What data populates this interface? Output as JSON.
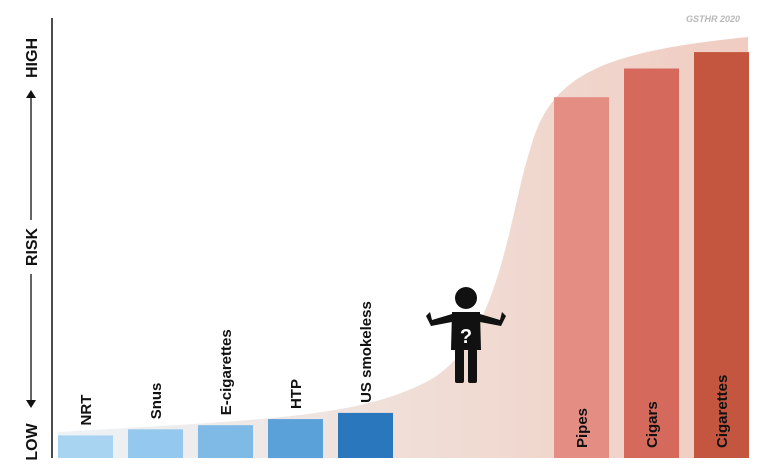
{
  "chart_data": {
    "type": "bar",
    "title": "",
    "xlabel": "",
    "ylabel": "RISK",
    "y_axis": {
      "low_label": "LOW",
      "high_label": "HIGH",
      "arrows": [
        "up",
        "down"
      ]
    },
    "categories": [
      "NRT",
      "Snus",
      "E-cigarettes",
      "HTP",
      "US smokeless",
      "Pipes",
      "Cigars",
      "Cigarettes"
    ],
    "values": [
      5.5,
      7,
      8,
      9.5,
      11,
      88,
      95,
      99
    ],
    "ylim": [
      0,
      100
    ],
    "grid": false,
    "legend": "none",
    "background_curve": "rising s-curve",
    "colors": {
      "low_risk": [
        "#a8d4f2",
        "#94c8ee",
        "#7fb9e6",
        "#5aa0d9",
        "#2b77bd"
      ],
      "high_risk": [
        "#e38d83",
        "#d4695c",
        "#c4553f"
      ],
      "curve": "#efcfc4"
    },
    "annotation_icon": "confused-person-question-mark-icon",
    "credit": "GSTHR 2020"
  }
}
